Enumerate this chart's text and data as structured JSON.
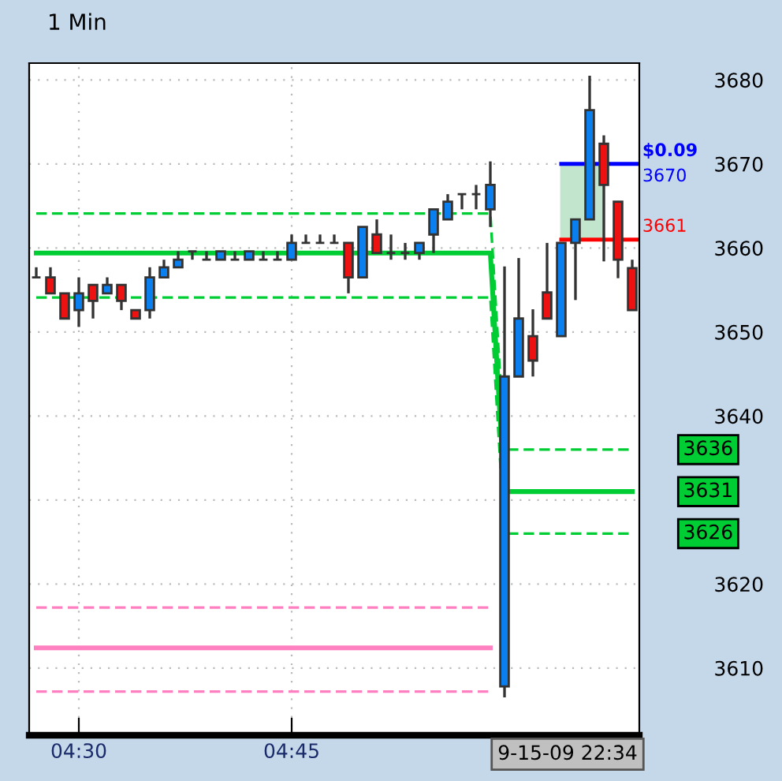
{
  "chart_data": {
    "type": "candlestick",
    "title": "1 Min",
    "categories": [
      null,
      null,
      null,
      "04:30",
      null,
      null,
      null,
      null,
      null,
      null,
      null,
      null,
      null,
      null,
      null,
      null,
      null,
      null,
      "04:45",
      null,
      null,
      null,
      null,
      null,
      null,
      null,
      null,
      null,
      null,
      null,
      null,
      null,
      null,
      null,
      null,
      null,
      null,
      null,
      null,
      null,
      null,
      null,
      null
    ],
    "ohlc": [
      [
        3656.5,
        3657.7,
        3656.5,
        3656.5
      ],
      [
        3656.5,
        3657.7,
        3654.6,
        3654.6
      ],
      [
        3654.6,
        3654.6,
        3651.6,
        3651.6
      ],
      [
        3652.6,
        3656.5,
        3650.6,
        3654.6
      ],
      [
        3655.6,
        3655.6,
        3651.6,
        3653.7
      ],
      [
        3654.6,
        3656.5,
        3654.6,
        3655.6
      ],
      [
        3655.6,
        3655.6,
        3652.6,
        3653.7
      ],
      [
        3652.6,
        3652.6,
        3651.6,
        3651.6
      ],
      [
        3652.6,
        3657.7,
        3651.6,
        3656.5
      ],
      [
        3656.5,
        3658.6,
        3656.5,
        3657.7
      ],
      [
        3657.7,
        3659.6,
        3657.7,
        3658.6
      ],
      [
        3659.6,
        3659.6,
        3658.6,
        3659.6
      ],
      [
        3658.6,
        3659.6,
        3658.6,
        3658.6
      ],
      [
        3658.6,
        3659.6,
        3658.6,
        3659.6
      ],
      [
        3658.6,
        3659.6,
        3658.6,
        3658.6
      ],
      [
        3658.6,
        3659.6,
        3658.6,
        3659.6
      ],
      [
        3658.6,
        3659.6,
        3658.6,
        3658.6
      ],
      [
        3658.6,
        3659.6,
        3658.6,
        3658.6
      ],
      [
        3658.6,
        3661.6,
        3658.6,
        3660.6
      ],
      [
        3660.6,
        3661.6,
        3660.6,
        3660.6
      ],
      [
        3660.6,
        3661.6,
        3660.6,
        3660.6
      ],
      [
        3660.6,
        3661.6,
        3660.6,
        3660.6
      ],
      [
        3660.6,
        3660.6,
        3654.6,
        3656.5
      ],
      [
        3656.5,
        3662.5,
        3656.5,
        3662.5
      ],
      [
        3661.6,
        3663.4,
        3659.4,
        3659.4
      ],
      [
        3659.4,
        3661.6,
        3658.6,
        3659.4
      ],
      [
        3659.4,
        3660.6,
        3658.6,
        3659.4
      ],
      [
        3659.4,
        3660.6,
        3658.6,
        3660.6
      ],
      [
        3661.6,
        3664.6,
        3659.4,
        3664.6
      ],
      [
        3663.4,
        3666.4,
        3663.4,
        3665.5
      ],
      [
        3666.4,
        3666.4,
        3664.6,
        3666.4
      ],
      [
        3666.4,
        3667.5,
        3664.6,
        3666.4
      ],
      [
        3664.6,
        3670.3,
        3662.5,
        3667.5
      ],
      [
        3607.8,
        3657.8,
        3606.5,
        3644.7
      ],
      [
        3644.7,
        3658.8,
        3644.7,
        3651.6
      ],
      [
        3649.5,
        3652.7,
        3644.7,
        3646.6
      ],
      [
        3654.7,
        3660.6,
        3651.6,
        3651.6
      ],
      [
        3649.5,
        3660.6,
        3649.5,
        3660.6
      ],
      [
        3660.6,
        3663.4,
        3653.8,
        3663.4
      ],
      [
        3663.4,
        3680.5,
        3663.4,
        3676.4
      ],
      [
        3672.4,
        3673.4,
        3658.4,
        3667.5
      ],
      [
        3665.5,
        3665.5,
        3656.4,
        3658.6
      ],
      [
        3657.6,
        3658.6,
        3652.6,
        3652.6
      ]
    ],
    "colors": [
      "#333333",
      "#ee1111",
      "#ee1111",
      "#0a7ff0",
      "#ee1111",
      "#0a7ff0",
      "#ee1111",
      "#ee1111",
      "#0a7ff0",
      "#0a7ff0",
      "#0a7ff0",
      "#333333",
      "#333333",
      "#0a7ff0",
      "#333333",
      "#0a7ff0",
      "#333333",
      "#333333",
      "#0a7ff0",
      "#333333",
      "#333333",
      "#333333",
      "#ee1111",
      "#0a7ff0",
      "#ee1111",
      "#333333",
      "#333333",
      "#0a7ff0",
      "#0a7ff0",
      "#0a7ff0",
      "#333333",
      "#333333",
      "#0a7ff0",
      "#0a7ff0",
      "#0a7ff0",
      "#ee1111",
      "#ee1111",
      "#0a7ff0",
      "#0a7ff0",
      "#0a7ff0",
      "#ee1111",
      "#ee1111",
      "#ee1111"
    ],
    "series": [
      {
        "type": "line",
        "name": "3631",
        "color": "#00cc33",
        "line_style": "solid",
        "values": [
          3659.4,
          3659.4,
          3659.4,
          3659.4,
          3659.4,
          3659.4,
          3659.4,
          3659.4,
          3659.4,
          3659.4,
          3659.4,
          3659.4,
          3659.4,
          3659.4,
          3659.4,
          3659.4,
          3659.4,
          3659.4,
          3659.4,
          3659.4,
          3659.4,
          3659.4,
          3659.4,
          3659.4,
          3659.4,
          3659.4,
          3659.4,
          3659.4,
          3659.4,
          3659.4,
          3659.4,
          3659.4,
          3659.4,
          3631,
          3631,
          3631,
          3631,
          3631,
          3631,
          3631,
          3631,
          3631,
          3631
        ]
      },
      {
        "type": "line",
        "name": "3636",
        "color": "#00cc33",
        "line_style": "dashed",
        "values": [
          3664.1,
          3664.1,
          3664.1,
          3664.1,
          3664.1,
          3664.1,
          3664.1,
          3664.1,
          3664.1,
          3664.1,
          3664.1,
          3664.1,
          3664.1,
          3664.1,
          3664.1,
          3664.1,
          3664.1,
          3664.1,
          3664.1,
          3664.1,
          3664.1,
          3664.1,
          3664.1,
          3664.1,
          3664.1,
          3664.1,
          3664.1,
          3664.1,
          3664.1,
          3664.1,
          3664.1,
          3664.1,
          3664.1,
          3636,
          3636,
          3636,
          3636,
          3636,
          3636,
          3636,
          3636,
          3636,
          3636
        ]
      },
      {
        "type": "line",
        "name": "3626",
        "color": "#00cc33",
        "line_style": "dashed",
        "values": [
          3654.1,
          3654.1,
          3654.1,
          3654.1,
          3654.1,
          3654.1,
          3654.1,
          3654.1,
          3654.1,
          3654.1,
          3654.1,
          3654.1,
          3654.1,
          3654.1,
          3654.1,
          3654.1,
          3654.1,
          3654.1,
          3654.1,
          3654.1,
          3654.1,
          3654.1,
          3654.1,
          3654.1,
          3654.1,
          3654.1,
          3654.1,
          3654.1,
          3654.1,
          3654.1,
          3654.1,
          3654.1,
          3654.1,
          3626,
          3626,
          3626,
          3626,
          3626,
          3626,
          3626,
          3626,
          3626,
          3626
        ]
      },
      {
        "type": "line",
        "color": "#ff80c0",
        "line_style": "dashed",
        "values": [
          3617.2,
          3617.2,
          3617.2,
          3617.2,
          3617.2,
          3617.2,
          3617.2,
          3617.2,
          3617.2,
          3617.2,
          3617.2,
          3617.2,
          3617.2,
          3617.2,
          3617.2,
          3617.2,
          3617.2,
          3617.2,
          3617.2,
          3617.2,
          3617.2,
          3617.2,
          3617.2,
          3617.2,
          3617.2,
          3617.2,
          3617.2,
          3617.2,
          3617.2,
          3617.2,
          3617.2,
          3617.2,
          3617.2,
          null,
          null,
          null,
          null,
          null,
          null,
          null,
          null,
          null,
          null
        ]
      },
      {
        "type": "line",
        "color": "#ff80c0",
        "line_style": "solid",
        "values": [
          3612.4,
          3612.4,
          3612.4,
          3612.4,
          3612.4,
          3612.4,
          3612.4,
          3612.4,
          3612.4,
          3612.4,
          3612.4,
          3612.4,
          3612.4,
          3612.4,
          3612.4,
          3612.4,
          3612.4,
          3612.4,
          3612.4,
          3612.4,
          3612.4,
          3612.4,
          3612.4,
          3612.4,
          3612.4,
          3612.4,
          3612.4,
          3612.4,
          3612.4,
          3612.4,
          3612.4,
          3612.4,
          3612.4,
          null,
          null,
          null,
          null,
          null,
          null,
          null,
          null,
          null,
          null
        ]
      },
      {
        "type": "line",
        "color": "#ff80c0",
        "line_style": "dashed",
        "values": [
          3607.2,
          3607.2,
          3607.2,
          3607.2,
          3607.2,
          3607.2,
          3607.2,
          3607.2,
          3607.2,
          3607.2,
          3607.2,
          3607.2,
          3607.2,
          3607.2,
          3607.2,
          3607.2,
          3607.2,
          3607.2,
          3607.2,
          3607.2,
          3607.2,
          3607.2,
          3607.2,
          3607.2,
          3607.2,
          3607.2,
          3607.2,
          3607.2,
          3607.2,
          3607.2,
          3607.2,
          3607.2,
          3607.2,
          null,
          null,
          null,
          null,
          null,
          null,
          null,
          null,
          null,
          null
        ]
      }
    ],
    "ylim": [
      3602,
      3682
    ],
    "yticks": [
      3610,
      3620,
      {
        "value": 3630,
        "label": null
      },
      3640,
      3650,
      3660,
      3670,
      3680
    ],
    "grid": true,
    "legend": "right",
    "ref_lines": [
      {
        "axis": "y",
        "value": 3670,
        "label": "3670",
        "color": "#0000ff"
      },
      {
        "axis": "y",
        "value": 3661,
        "label": "3661",
        "color": "#ff0000"
      }
    ],
    "bands": [
      {
        "axis": "y",
        "from": 3661,
        "to": 3670,
        "label": "$0.09",
        "color": "#a8dcb8"
      }
    ],
    "annotations": [
      "9-15-09 22:34"
    ]
  }
}
